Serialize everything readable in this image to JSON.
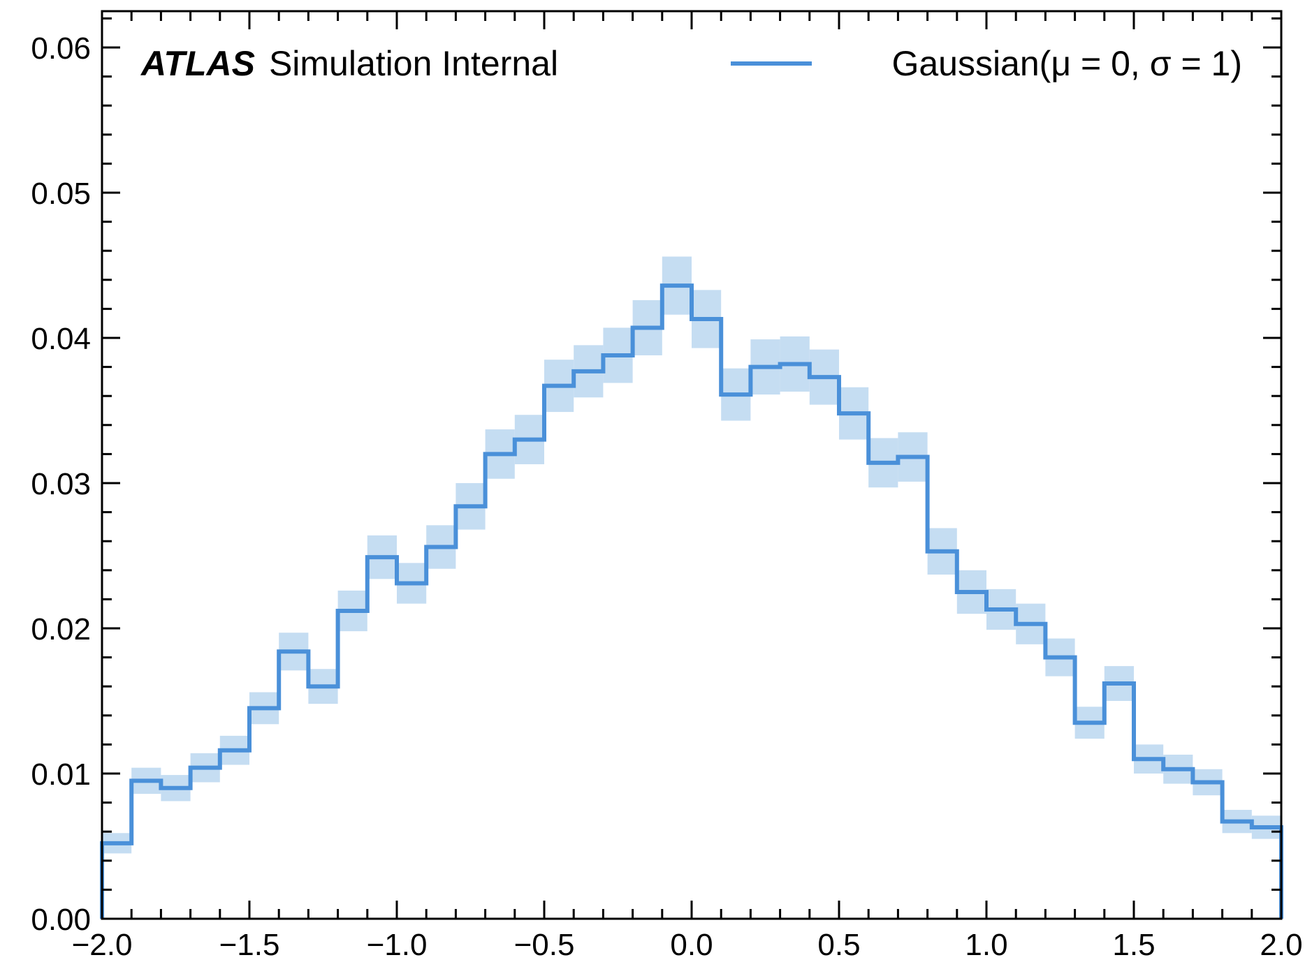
{
  "labels": {
    "experiment": "ATLAS",
    "status": "Simulation Internal",
    "legend_entry": "Gaussian(μ = 0, σ = 1)"
  },
  "colors": {
    "line": "#4a90d9",
    "band": "#c5ddf2",
    "axis": "#000000"
  },
  "chart_data": {
    "type": "histogram",
    "series": [
      {
        "name": "Gaussian(μ = 0, σ = 1)",
        "bin_edges": [
          -2.0,
          -1.9,
          -1.8,
          -1.7,
          -1.6,
          -1.5,
          -1.4,
          -1.3,
          -1.2,
          -1.1,
          -1.0,
          -0.9,
          -0.8,
          -0.7,
          -0.6,
          -0.5,
          -0.4,
          -0.3,
          -0.2,
          -0.1,
          0.0,
          0.1,
          0.2,
          0.3,
          0.4,
          0.5,
          0.6,
          0.7,
          0.8,
          0.9,
          1.0,
          1.1,
          1.2,
          1.3,
          1.4,
          1.5,
          1.6,
          1.7,
          1.8,
          1.9,
          2.0
        ],
        "values": [
          0.0052,
          0.0095,
          0.009,
          0.0104,
          0.0116,
          0.0145,
          0.0184,
          0.016,
          0.0212,
          0.0249,
          0.0231,
          0.0256,
          0.0284,
          0.032,
          0.033,
          0.0367,
          0.0377,
          0.0388,
          0.0407,
          0.0436,
          0.0413,
          0.0361,
          0.038,
          0.0382,
          0.0373,
          0.0348,
          0.0314,
          0.0318,
          0.0253,
          0.0225,
          0.0213,
          0.0203,
          0.018,
          0.0135,
          0.0162,
          0.011,
          0.0103,
          0.0094,
          0.0067,
          0.0063
        ],
        "errors": [
          0.0007,
          0.0009,
          0.0009,
          0.001,
          0.001,
          0.0011,
          0.0013,
          0.0012,
          0.0014,
          0.0015,
          0.0014,
          0.0015,
          0.0016,
          0.0017,
          0.0017,
          0.0018,
          0.0018,
          0.0019,
          0.0019,
          0.002,
          0.002,
          0.0018,
          0.0019,
          0.0019,
          0.0019,
          0.0018,
          0.0017,
          0.0017,
          0.0016,
          0.0015,
          0.0014,
          0.0014,
          0.0013,
          0.0011,
          0.0012,
          0.001,
          0.001,
          0.0009,
          0.0008,
          0.0008
        ]
      }
    ],
    "xlim": [
      -2.0,
      2.0
    ],
    "ylim": [
      0.0,
      0.0625
    ],
    "x_ticks": [
      -2.0,
      -1.5,
      -1.0,
      -0.5,
      0.0,
      0.5,
      1.0,
      1.5,
      2.0
    ],
    "x_tick_labels": [
      "−2.0",
      "−1.5",
      "−1.0",
      "−0.5",
      "0.0",
      "0.5",
      "1.0",
      "1.5",
      "2.0"
    ],
    "y_ticks": [
      0.0,
      0.01,
      0.02,
      0.03,
      0.04,
      0.05,
      0.06
    ],
    "y_tick_labels": [
      "0.00",
      "0.01",
      "0.02",
      "0.03",
      "0.04",
      "0.05",
      "0.06"
    ],
    "x_minor_step": 0.1,
    "y_minor_step": 0.002,
    "xlabel": "",
    "ylabel": "",
    "grid": false,
    "legend_position": "top-right"
  }
}
